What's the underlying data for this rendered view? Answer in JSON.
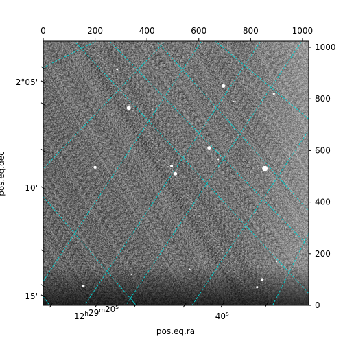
{
  "image": {
    "description_type": "astronomical-image-grayscale",
    "grid_color": "#00d4d4",
    "noise_base_gray": 112
  },
  "axes": {
    "top": {
      "ticks": [
        "0",
        "200",
        "400",
        "600",
        "800",
        "1000"
      ],
      "values": [
        0,
        200,
        400,
        600,
        800,
        1000
      ],
      "range": [
        0,
        1024
      ]
    },
    "right": {
      "ticks": [
        "0",
        "200",
        "400",
        "600",
        "800",
        "1000"
      ],
      "values": [
        0,
        200,
        400,
        600,
        800,
        1000
      ],
      "range": [
        0,
        1024
      ]
    },
    "left": {
      "label": "pos.eq.dec",
      "ticks": [
        "2°05'",
        "10'",
        "15'"
      ],
      "values": [
        865,
        455,
        35
      ]
    },
    "bottom": {
      "label": "pos.eq.ra",
      "ticks_main": [
        "12",
        "29",
        "20",
        "40"
      ],
      "ticks_sup": [
        "h",
        "m",
        "s",
        "s"
      ],
      "values": [
        205,
        690
      ]
    }
  },
  "stars": [
    {
      "x": 330,
      "y": 765,
      "r": 3
    },
    {
      "x": 200,
      "y": 535,
      "r": 2.2
    },
    {
      "x": 495,
      "y": 540,
      "r": 2
    },
    {
      "x": 510,
      "y": 510,
      "r": 2.5
    },
    {
      "x": 640,
      "y": 610,
      "r": 2.5
    },
    {
      "x": 855,
      "y": 530,
      "r": 4
    },
    {
      "x": 695,
      "y": 850,
      "r": 2.5
    },
    {
      "x": 890,
      "y": 820,
      "r": 1.5
    },
    {
      "x": 285,
      "y": 915,
      "r": 1.5
    },
    {
      "x": 155,
      "y": 75,
      "r": 1.8
    },
    {
      "x": 845,
      "y": 100,
      "r": 2
    },
    {
      "x": 825,
      "y": 70,
      "r": 1.6
    },
    {
      "x": 420,
      "y": 760,
      "r": 1
    },
    {
      "x": 675,
      "y": 565,
      "r": 1
    },
    {
      "x": 735,
      "y": 790,
      "r": 1
    },
    {
      "x": 565,
      "y": 140,
      "r": 1
    },
    {
      "x": 340,
      "y": 120,
      "r": 1
    },
    {
      "x": 40,
      "y": 765,
      "r": 1
    },
    {
      "x": 900,
      "y": 170,
      "r": 1
    }
  ]
}
